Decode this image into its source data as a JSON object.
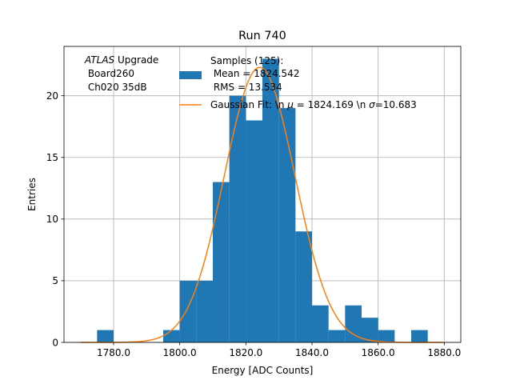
{
  "chart_data": {
    "type": "bar",
    "title": "Run 740",
    "xlabel": "Energy [ADC Counts]",
    "ylabel": "Entries",
    "xlim": [
      1765,
      1885
    ],
    "ylim": [
      0,
      24
    ],
    "grid": true,
    "x_ticks": [
      1780,
      1800,
      1820,
      1840,
      1860,
      1880
    ],
    "x_tick_labels": [
      "1780.0",
      "1800.0",
      "1820.0",
      "1840.0",
      "1860.0",
      "1880.0"
    ],
    "y_ticks": [
      0,
      5,
      10,
      15,
      20
    ],
    "y_tick_labels": [
      "0",
      "5",
      "10",
      "15",
      "20"
    ],
    "bin_edges": [
      1775,
      1780,
      1785,
      1790,
      1795,
      1800,
      1805,
      1810,
      1815,
      1820,
      1825,
      1830,
      1835,
      1840,
      1845,
      1850,
      1855,
      1860,
      1865,
      1870,
      1875
    ],
    "counts": [
      1,
      0,
      0,
      0,
      1,
      5,
      5,
      13,
      20,
      18,
      23,
      19,
      9,
      3,
      1,
      3,
      2,
      1,
      0,
      1
    ],
    "fit": {
      "mu": 1824.169,
      "sigma": 10.683,
      "amplitude": 22.3
    },
    "colors": {
      "bars": "#1f77b4",
      "fit": "#ff7f0e",
      "grid": "#b0b0b0"
    },
    "annotation": {
      "line1_italic": "ATLAS",
      "line1_rest": " Upgrade",
      "line2": " Board260",
      "line3": " Ch020 35dB"
    },
    "legend": {
      "placement": "top-right",
      "bars_line1": "Samples (125):",
      "bars_line2": " Mean = 1824.542",
      "bars_line3": " RMS = 13.534",
      "fit_prefix": "Gaussian Fit: \\n ",
      "fit_mu_symbol": "μ",
      "fit_mid": " = 1824.169 \\n ",
      "fit_sigma_symbol": "σ",
      "fit_suffix": "=10.683"
    }
  }
}
